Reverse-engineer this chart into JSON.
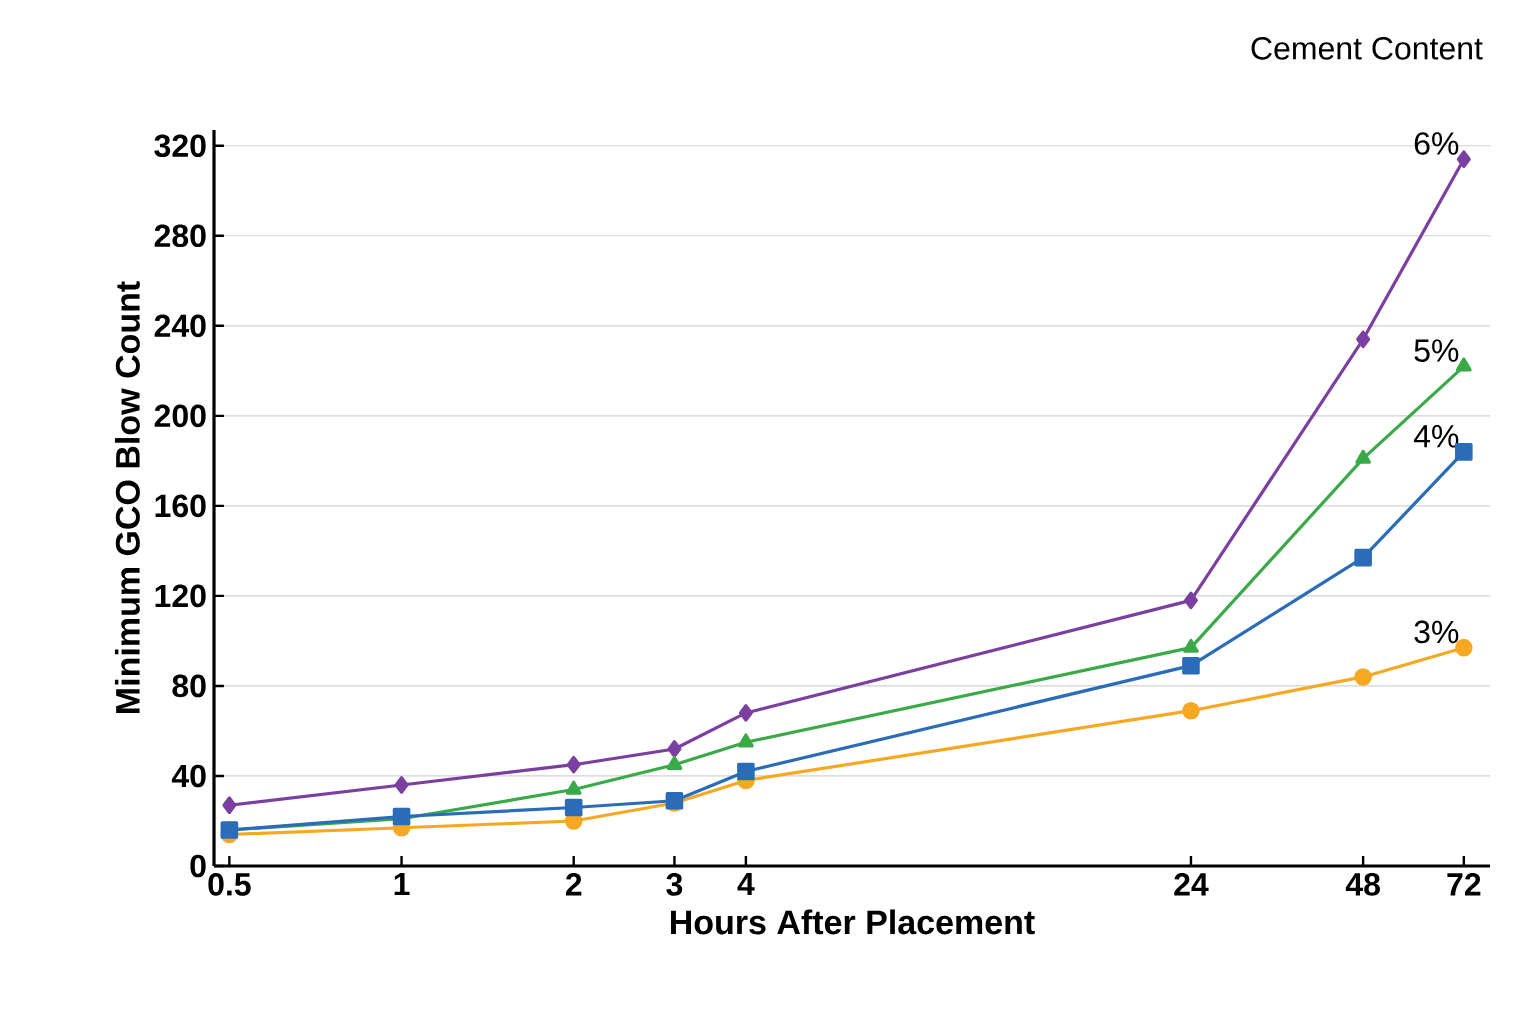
{
  "chart_data": {
    "type": "line",
    "legend_title": "Cement Content",
    "xlabel": "Hours After Placement",
    "ylabel": "Minimum GCO Blow Count",
    "log": "x",
    "xlim": [
      0.47,
      80
    ],
    "xticks": [
      0.5,
      1,
      2,
      3,
      4,
      24,
      48,
      72
    ],
    "ylim": [
      0,
      327
    ],
    "yticks": [
      0,
      40,
      80,
      120,
      160,
      200,
      240,
      280,
      320
    ],
    "grid": "y",
    "series": [
      {
        "name": "6%",
        "color": "#7b3fa0",
        "marker": "diamond",
        "x": [
          0.5,
          1,
          2,
          3,
          4,
          24,
          48,
          72
        ],
        "values": [
          27,
          36,
          45,
          52,
          68,
          118,
          234,
          314
        ]
      },
      {
        "name": "5%",
        "color": "#3aaa48",
        "marker": "triangle",
        "x": [
          0.5,
          1,
          2,
          3,
          4,
          24,
          48,
          72
        ],
        "values": [
          16,
          21,
          34,
          45,
          55,
          97,
          181,
          222
        ]
      },
      {
        "name": "3%",
        "color": "#f7a823",
        "marker": "circle",
        "x": [
          0.5,
          1,
          2,
          3,
          4,
          24,
          48,
          72
        ],
        "values": [
          14,
          17,
          20,
          28,
          38,
          69,
          84,
          97
        ]
      },
      {
        "name": "4%",
        "color": "#2b6cb8",
        "marker": "square",
        "x": [
          0.5,
          1,
          2,
          3,
          4,
          24,
          48,
          72
        ],
        "values": [
          16,
          22,
          26,
          29,
          42,
          89,
          137,
          184
        ]
      }
    ]
  }
}
